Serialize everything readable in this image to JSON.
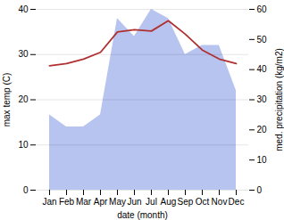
{
  "chart_data": {
    "type": "line",
    "xlabel": "date (month)",
    "ylabel": "max temp (C)",
    "y2label": "med. precipitation (kg/m2)",
    "categories": [
      "Jan",
      "Feb",
      "Mar",
      "Apr",
      "May",
      "Jun",
      "Jul",
      "Aug",
      "Sep",
      "Oct",
      "Nov",
      "Dec"
    ],
    "series": [
      {
        "type": "area",
        "axis": "y2",
        "color": "#b8c4f0",
        "values": [
          25.0,
          21.0,
          21.0,
          25.0,
          57.0,
          51.0,
          60.0,
          57.0,
          45.0,
          48.0,
          48.0,
          33.0
        ]
      },
      {
        "type": "line",
        "color": "#b03030",
        "values": [
          27.5,
          28.0,
          29.0,
          30.5,
          35.0,
          35.5,
          35.2,
          37.5,
          34.5,
          31.0,
          29.0,
          28.0
        ]
      }
    ],
    "ylim": [
      0,
      40
    ],
    "yticks": [
      0,
      10,
      20,
      30,
      40
    ],
    "y2lim": [
      0,
      60
    ],
    "y2ticks": [
      0,
      10,
      20,
      30,
      40,
      50,
      60
    ],
    "grid": true
  }
}
